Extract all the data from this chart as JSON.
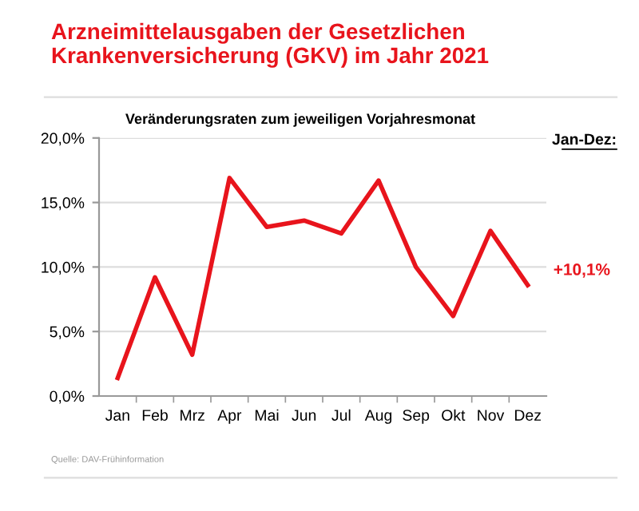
{
  "chart_data": {
    "type": "line",
    "title": "Arzneimittelausgaben der Gesetzlichen Krankenversicherung (GKV) im Jahr 2021",
    "subtitle": "Veränderungsraten zum jeweiligen Vorjahresmonat",
    "categories": [
      "Jan",
      "Feb",
      "Mrz",
      "Apr",
      "Mai",
      "Jun",
      "Jul",
      "Aug",
      "Sep",
      "Okt",
      "Nov",
      "Dez"
    ],
    "series": [
      {
        "color": "#e8141c",
        "values": [
          1.4,
          9.2,
          3.2,
          16.9,
          13.1,
          13.6,
          12.6,
          16.7,
          10.0,
          6.2,
          12.8,
          8.6
        ]
      }
    ],
    "ylim": [
      0,
      20
    ],
    "yticks": [
      {
        "value": 0,
        "label": "0,0%"
      },
      {
        "value": 5,
        "label": "5,0%"
      },
      {
        "value": 10,
        "label": "10,0%"
      },
      {
        "value": 15,
        "label": "15,0%"
      },
      {
        "value": 20,
        "label": "20,0%"
      }
    ],
    "grid": "y",
    "marker": "none",
    "line_style": "solid",
    "legend": false,
    "annotations": [
      "Jan-Dez:",
      "+10,1%",
      "Quelle: DAV-Frühinformation"
    ]
  }
}
